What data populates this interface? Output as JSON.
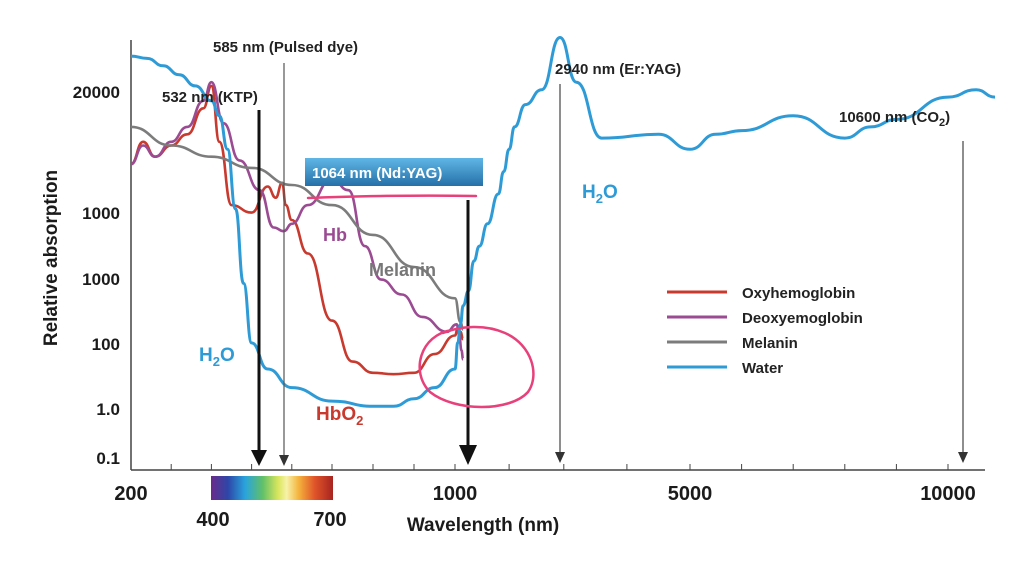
{
  "chart_data": {
    "type": "line",
    "title": "",
    "xlabel": "Wavelength (nm)",
    "ylabel": "Relative absorption",
    "x_ticks": [
      "200",
      "1000",
      "5000",
      "10000"
    ],
    "y_ticks": [
      "20000",
      "1000",
      "1000",
      "100",
      "1.0",
      "0.1"
    ],
    "spectrum_bar_labels": [
      "400",
      "700"
    ],
    "laser_lines": [
      {
        "label": "532 nm (KTP)",
        "wavelength_nm": 532
      },
      {
        "label": "585 nm (Pulsed dye)",
        "wavelength_nm": 585
      },
      {
        "label": "1064 nm (Nd:YAG)",
        "wavelength_nm": 1064
      },
      {
        "label": "2940 nm (Er:YAG)",
        "wavelength_nm": 2940
      },
      {
        "label": "10600 nm (CO",
        "sub": "2",
        "tail": ")",
        "wavelength_nm": 10600
      }
    ],
    "curve_labels": {
      "hb": "Hb",
      "melanin": "Melanin",
      "hbo2": "HbO",
      "hbo2_sub": "2",
      "h2o_left": "H",
      "h2o_left_sub": "2",
      "h2o_left_tail": "O",
      "h2o_right": "H",
      "h2o_right_sub": "2",
      "h2o_right_tail": "O"
    },
    "series": [
      {
        "name": "Oxyhemoglobin",
        "color": "#c8392e",
        "x": [
          200,
          230,
          260,
          300,
          340,
          380,
          400,
          420,
          450,
          500,
          540,
          560,
          576,
          585,
          600,
          640,
          700,
          750,
          800,
          850,
          900,
          950,
          1000,
          1050,
          1100,
          1150
        ],
        "y": [
          3.3,
          3.6,
          3.4,
          3.55,
          3.7,
          4.05,
          4.35,
          3.6,
          2.75,
          2.65,
          3.0,
          2.85,
          3.05,
          2.75,
          2.55,
          2.1,
          1.2,
          0.65,
          0.5,
          0.48,
          0.5,
          0.75,
          1.0,
          1.1,
          1.05,
          0.95
        ]
      },
      {
        "name": "Deoxyemoglobin",
        "color": "#9a4b92",
        "x": [
          200,
          230,
          260,
          300,
          340,
          380,
          400,
          430,
          470,
          520,
          555,
          580,
          600,
          640,
          700,
          740,
          780,
          820,
          870,
          920,
          980,
          1030,
          1080,
          1120,
          1150
        ],
        "y": [
          3.3,
          3.55,
          3.4,
          3.6,
          3.8,
          4.15,
          4.4,
          3.85,
          3.35,
          2.95,
          2.45,
          2.4,
          2.5,
          2.75,
          3.1,
          2.95,
          2.2,
          1.75,
          1.55,
          1.25,
          1.05,
          1.15,
          1.0,
          0.8,
          0.68
        ]
      },
      {
        "name": "Melanin",
        "color": "#7c7c7c",
        "x": [
          200,
          300,
          400,
          500,
          600,
          700,
          800,
          900,
          1000,
          1100,
          1150
        ],
        "y": [
          3.8,
          3.55,
          3.4,
          3.25,
          3.02,
          2.75,
          2.35,
          1.92,
          1.5,
          1.18,
          1.08
        ]
      },
      {
        "name": "Water",
        "color": "#2e9bd6",
        "x": [
          200,
          240,
          280,
          320,
          360,
          400,
          420,
          440,
          460,
          480,
          500,
          540,
          600,
          700,
          800,
          850,
          900,
          950,
          1000,
          1050,
          1100,
          1150,
          1250,
          1350,
          1450,
          1600,
          1800,
          1900,
          2000,
          2100,
          2300,
          2600,
          2940,
          3200,
          3600,
          4500,
          5000,
          5500,
          6000,
          7000,
          8000,
          8500,
          9000,
          10000,
          10600,
          11000
        ],
        "y": [
          4.75,
          4.72,
          4.62,
          4.5,
          4.35,
          4.15,
          3.95,
          3.5,
          2.7,
          1.7,
          0.9,
          0.55,
          0.3,
          0.12,
          0.05,
          0.05,
          0.15,
          0.3,
          0.55,
          0.9,
          1.15,
          1.4,
          1.6,
          2.0,
          2.2,
          2.5,
          2.9,
          3.2,
          3.5,
          3.8,
          4.1,
          4.3,
          5.0,
          4.4,
          3.65,
          3.7,
          3.5,
          3.7,
          3.75,
          3.95,
          3.65,
          3.8,
          3.9,
          4.2,
          4.3,
          4.2
        ]
      }
    ],
    "legend": "right",
    "grid": false
  }
}
